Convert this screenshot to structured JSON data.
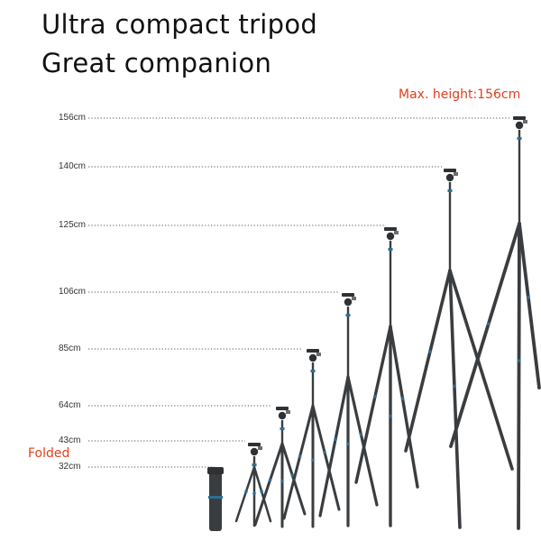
{
  "headline": {
    "line1": "Ultra compact tripod",
    "line2": "Great companion"
  },
  "max_label": "Max. height:156cm",
  "folded_label": "Folded",
  "accent_color": "#e0401e",
  "tripod_color": "#3a3d40",
  "clamp_color": "#2d6f96",
  "heights": [
    "156cm",
    "140cm",
    "125cm",
    "106cm",
    "85cm",
    "64cm",
    "43cm",
    "32cm"
  ]
}
